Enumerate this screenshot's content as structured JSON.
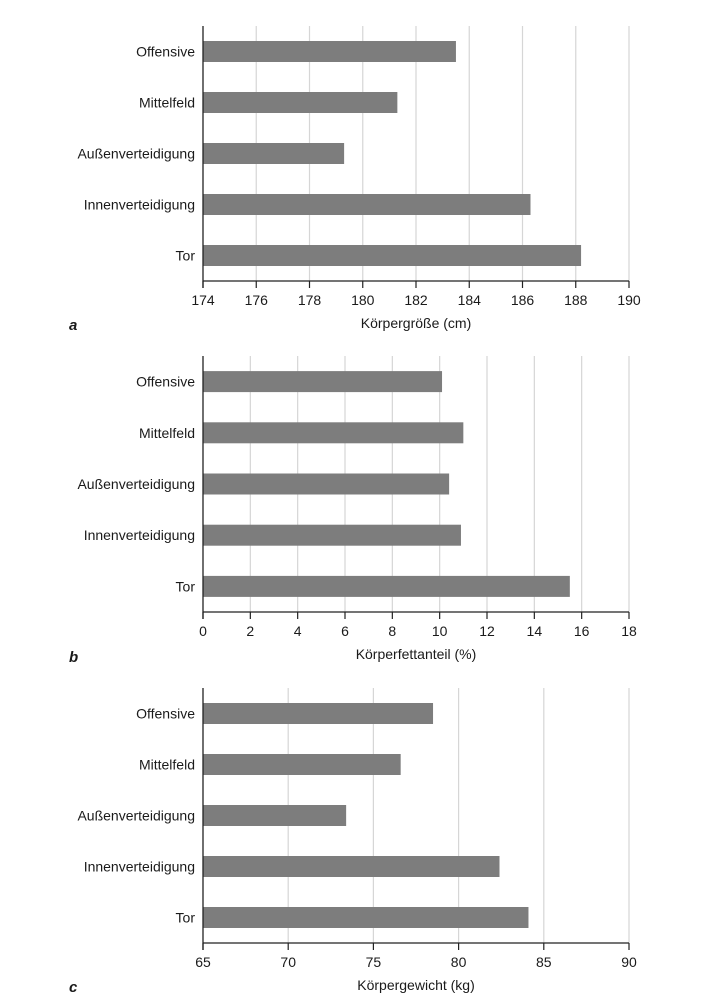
{
  "colors": {
    "bar": "#7d7d7d",
    "grid": "#d6d6d6",
    "axis": "#222222"
  },
  "chart_data": [
    {
      "type": "bar",
      "orientation": "horizontal",
      "panel_label": "a",
      "categories": [
        "Offensive",
        "Mittelfeld",
        "Außenverteidigung",
        "Innenverteidigung",
        "Tor"
      ],
      "values": [
        183.5,
        181.3,
        179.3,
        186.3,
        188.2
      ],
      "xlabel": "Körpergröße (cm)",
      "xlim": [
        174,
        190
      ],
      "xticks": [
        174,
        176,
        178,
        180,
        182,
        184,
        186,
        188,
        190
      ],
      "grid": "vertical"
    },
    {
      "type": "bar",
      "orientation": "horizontal",
      "panel_label": "b",
      "categories": [
        "Offensive",
        "Mittelfeld",
        "Außenverteidigung",
        "Innenverteidigung",
        "Tor"
      ],
      "values": [
        10.1,
        11.0,
        10.4,
        10.9,
        15.5
      ],
      "xlabel": "Körperfettanteil (%)",
      "xlim": [
        0,
        18
      ],
      "xticks": [
        0,
        2,
        4,
        6,
        8,
        10,
        12,
        14,
        16,
        18
      ],
      "grid": "vertical"
    },
    {
      "type": "bar",
      "orientation": "horizontal",
      "panel_label": "c",
      "categories": [
        "Offensive",
        "Mittelfeld",
        "Außenverteidigung",
        "Innenverteidigung",
        "Tor"
      ],
      "values": [
        78.5,
        76.6,
        73.4,
        82.4,
        84.1
      ],
      "xlabel": "Körpergewicht (kg)",
      "xlim": [
        65,
        90
      ],
      "xticks": [
        65,
        70,
        75,
        80,
        85,
        90
      ],
      "grid": "vertical"
    }
  ]
}
